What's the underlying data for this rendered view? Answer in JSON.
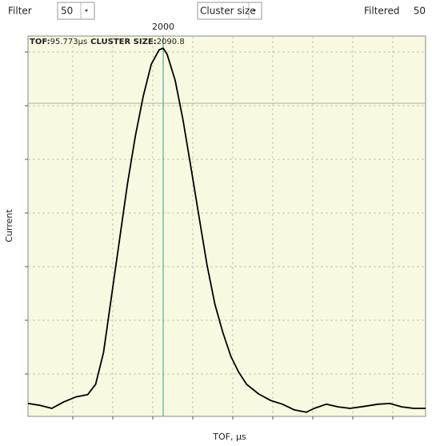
{
  "toolbar": {
    "filter_label": "Filter",
    "filter_value": "50",
    "mode": "Cluster size",
    "filtered_label": "Filtered",
    "filtered_value": "50"
  },
  "cursor": {
    "label": "2000",
    "tof_key": "TOF:",
    "tof_value": "95.773µs",
    "size_key": "CLUSTER SIZE:",
    "size_value": "2090.8"
  },
  "chart_data": {
    "type": "line",
    "x_label": "TOF, µs",
    "y_label": "Current",
    "color": "#000000",
    "x": [
      0,
      3,
      6,
      9,
      12,
      15,
      17,
      19,
      21,
      23,
      25,
      27,
      29,
      31,
      33,
      34,
      35,
      37,
      39,
      41,
      43,
      45,
      47,
      49,
      51,
      53,
      55,
      58,
      61,
      64,
      67,
      70,
      72,
      75,
      78,
      81,
      85,
      88,
      91,
      94,
      97,
      100
    ],
    "values": [
      3.4,
      2.9,
      2.1,
      3.8,
      5.1,
      5.7,
      8.4,
      16.8,
      31.6,
      46.3,
      61.1,
      73.7,
      84.2,
      92.6,
      96.4,
      96.8,
      95.2,
      88.4,
      77.9,
      65.3,
      52.6,
      40.0,
      29.5,
      22.1,
      15.8,
      11.6,
      8.4,
      5.9,
      4.2,
      3.2,
      1.7,
      1.1,
      2.1,
      3.2,
      2.5,
      2.1,
      2.7,
      3.2,
      3.4,
      2.5,
      2.1,
      2.1
    ],
    "xlim": [
      0,
      100
    ],
    "ylim": [
      0,
      100
    ]
  }
}
